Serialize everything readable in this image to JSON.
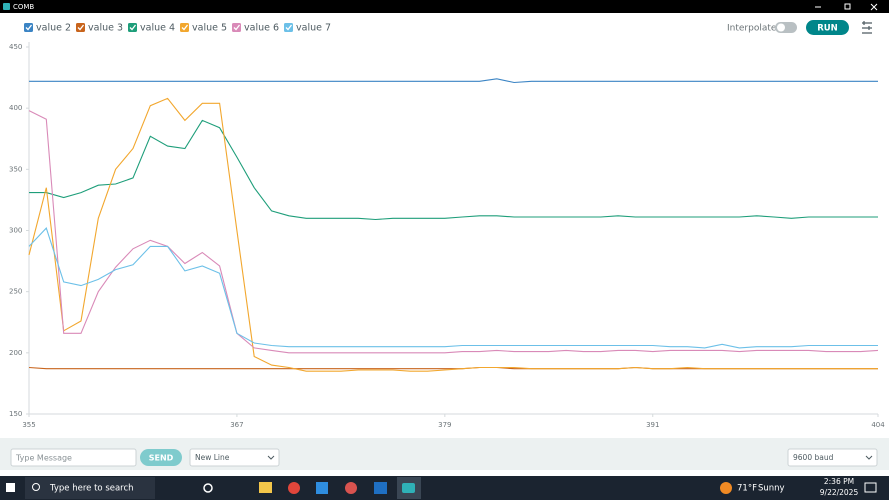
{
  "window": {
    "title": "COMB"
  },
  "toolbar": {
    "interpolate": "Interpolate",
    "run": "RUN"
  },
  "chart_data": {
    "type": "line",
    "x": [
      355,
      356,
      357,
      358,
      359,
      360,
      361,
      362,
      363,
      364,
      365,
      366,
      367,
      368,
      369,
      370,
      371,
      372,
      373,
      374,
      375,
      376,
      377,
      378,
      379,
      380,
      381,
      382,
      383,
      384,
      385,
      386,
      387,
      388,
      389,
      390,
      391,
      392,
      393,
      394,
      395,
      396,
      397,
      398,
      399,
      400,
      401,
      402,
      403,
      404
    ],
    "xlim": [
      355,
      404
    ],
    "xticks": [
      355,
      367,
      379,
      391,
      404
    ],
    "ylim": [
      150,
      450
    ],
    "yticks": [
      150,
      200,
      250,
      300,
      350,
      400,
      450
    ],
    "series": [
      {
        "name": "value 2",
        "color": "#3b84c4",
        "values": [
          422,
          422,
          422,
          422,
          422,
          422,
          422,
          422,
          422,
          422,
          422,
          422,
          422,
          422,
          422,
          422,
          422,
          422,
          422,
          422,
          422,
          422,
          422,
          422,
          422,
          422,
          422,
          424,
          421,
          422,
          422,
          422,
          422,
          422,
          422,
          422,
          422,
          422,
          422,
          422,
          422,
          422,
          422,
          422,
          422,
          422,
          422,
          422,
          422,
          422
        ]
      },
      {
        "name": "value 3",
        "color": "#c8641c",
        "values": [
          188,
          187,
          187,
          187,
          187,
          187,
          187,
          187,
          187,
          187,
          187,
          187,
          187,
          187,
          187,
          187,
          187,
          187,
          187,
          187,
          187,
          187,
          187,
          187,
          187,
          187,
          188,
          188,
          187,
          187,
          187,
          187,
          187,
          187,
          187,
          188,
          187,
          187,
          187,
          187,
          187,
          187,
          187,
          187,
          187,
          187,
          187,
          187,
          187,
          187
        ]
      },
      {
        "name": "value 4",
        "color": "#1e9e7a",
        "values": [
          331,
          331,
          327,
          331,
          337,
          338,
          343,
          377,
          369,
          367,
          390,
          384,
          360,
          335,
          316,
          312,
          310,
          310,
          310,
          310,
          309,
          310,
          310,
          310,
          310,
          311,
          312,
          312,
          311,
          311,
          311,
          311,
          311,
          311,
          312,
          311,
          311,
          311,
          311,
          311,
          311,
          311,
          312,
          311,
          310,
          311,
          311,
          311,
          311,
          311
        ]
      },
      {
        "name": "value 5",
        "color": "#f2a72e",
        "values": [
          280,
          335,
          218,
          226,
          310,
          350,
          367,
          402,
          408,
          390,
          404,
          404,
          300,
          197,
          190,
          188,
          185,
          185,
          185,
          186,
          186,
          186,
          185,
          185,
          186,
          187,
          188,
          188,
          188,
          187,
          187,
          187,
          187,
          187,
          187,
          188,
          187,
          187,
          188,
          187,
          187,
          187,
          187,
          187,
          187,
          187,
          187,
          187,
          187,
          187
        ]
      },
      {
        "name": "value 6",
        "color": "#d98ab8",
        "values": [
          398,
          391,
          216,
          216,
          250,
          270,
          285,
          292,
          287,
          273,
          282,
          271,
          216,
          204,
          202,
          200,
          200,
          200,
          200,
          200,
          200,
          200,
          200,
          200,
          200,
          201,
          201,
          202,
          201,
          201,
          201,
          202,
          201,
          201,
          202,
          202,
          201,
          202,
          202,
          202,
          202,
          201,
          202,
          202,
          202,
          202,
          201,
          201,
          201,
          202
        ]
      },
      {
        "name": "value 7",
        "color": "#6cc0e8",
        "values": [
          287,
          302,
          258,
          255,
          260,
          268,
          272,
          287,
          287,
          267,
          271,
          265,
          216,
          208,
          206,
          205,
          205,
          205,
          205,
          205,
          205,
          205,
          205,
          205,
          205,
          206,
          206,
          206,
          206,
          206,
          206,
          206,
          206,
          206,
          206,
          206,
          206,
          205,
          205,
          204,
          207,
          204,
          205,
          205,
          205,
          206,
          206,
          206,
          206,
          206
        ]
      }
    ]
  },
  "input_bar": {
    "placeholder": "Type Message",
    "send": "SEND",
    "line_ending": "New Line",
    "baud": "9600 baud"
  },
  "taskbar": {
    "search": "Type here to search",
    "temperature": "71°F",
    "weather": "Sunny",
    "time": "2:36 PM",
    "date": "9/22/2025"
  }
}
